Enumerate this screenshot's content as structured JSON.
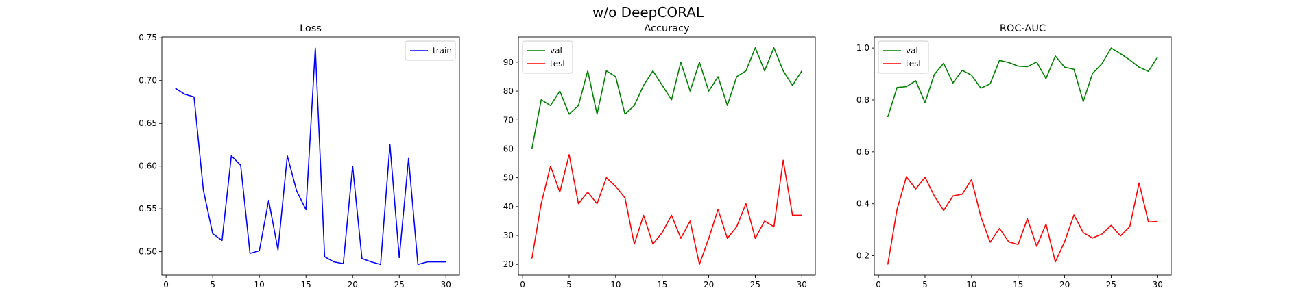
{
  "figure_title": "w/o DeepCORAL",
  "colors": {
    "train": "#0000ff",
    "val": "#008000",
    "test": "#ff0000",
    "axes": "#000000",
    "legend_edge": "#cccccc"
  },
  "chart_data": [
    {
      "type": "line",
      "title": "Loss",
      "xlabel": "",
      "ylabel": "",
      "xlim": [
        -0.45,
        31.45
      ],
      "ylim": [
        0.4725,
        0.751
      ],
      "xticks": [
        0,
        5,
        10,
        15,
        20,
        25,
        30
      ],
      "yticks": [
        0.5,
        0.55,
        0.6,
        0.65,
        0.7,
        0.75
      ],
      "ytick_labels": [
        "0.50",
        "0.55",
        "0.60",
        "0.65",
        "0.70",
        "0.75"
      ],
      "legend_position": "upper right",
      "x": [
        1,
        2,
        3,
        4,
        5,
        6,
        7,
        8,
        9,
        10,
        11,
        12,
        13,
        14,
        15,
        16,
        17,
        18,
        19,
        20,
        21,
        22,
        23,
        24,
        25,
        26,
        27,
        28,
        29,
        30
      ],
      "series": [
        {
          "name": "train",
          "color": "#0000ff",
          "values": [
            0.691,
            0.684,
            0.681,
            0.572,
            0.521,
            0.513,
            0.612,
            0.601,
            0.498,
            0.501,
            0.56,
            0.502,
            0.612,
            0.571,
            0.549,
            0.738,
            0.494,
            0.488,
            0.486,
            0.6,
            0.492,
            0.488,
            0.485,
            0.625,
            0.493,
            0.609,
            0.485,
            0.488,
            0.488,
            0.488
          ]
        }
      ]
    },
    {
      "type": "line",
      "title": "Accuracy",
      "xlabel": "",
      "ylabel": "",
      "xlim": [
        -0.45,
        31.45
      ],
      "ylim": [
        16.25,
        98.75
      ],
      "xticks": [
        0,
        5,
        10,
        15,
        20,
        25,
        30
      ],
      "yticks": [
        20,
        30,
        40,
        50,
        60,
        70,
        80,
        90
      ],
      "ytick_labels": [
        "20",
        "30",
        "40",
        "50",
        "60",
        "70",
        "80",
        "90"
      ],
      "legend_position": "upper left",
      "x": [
        1,
        2,
        3,
        4,
        5,
        6,
        7,
        8,
        9,
        10,
        11,
        12,
        13,
        14,
        15,
        16,
        17,
        18,
        19,
        20,
        21,
        22,
        23,
        24,
        25,
        26,
        27,
        28,
        29,
        30
      ],
      "series": [
        {
          "name": "val",
          "color": "#008000",
          "values": [
            60,
            77,
            75,
            80,
            72,
            75,
            87,
            72,
            87,
            85,
            72,
            75,
            82,
            87,
            82,
            77,
            90,
            80,
            90,
            80,
            85,
            75,
            85,
            87,
            95,
            87,
            95,
            87,
            82,
            87
          ]
        },
        {
          "name": "test",
          "color": "#ff0000",
          "values": [
            22,
            41,
            54,
            45,
            58,
            41,
            45,
            41,
            50,
            47,
            43,
            27,
            37,
            27,
            31,
            37,
            29,
            35,
            20,
            29,
            39,
            29,
            33,
            41,
            29,
            35,
            33,
            56,
            37,
            37
          ]
        }
      ]
    },
    {
      "type": "line",
      "title": "ROC-AUC",
      "xlabel": "",
      "ylabel": "",
      "xlim": [
        -0.45,
        31.45
      ],
      "ylim": [
        0.125,
        1.0425
      ],
      "xticks": [
        0,
        5,
        10,
        15,
        20,
        25,
        30
      ],
      "yticks": [
        0.2,
        0.4,
        0.6,
        0.8,
        1.0
      ],
      "ytick_labels": [
        "0.2",
        "0.4",
        "0.6",
        "0.8",
        "1.0"
      ],
      "legend_position": "upper left",
      "x": [
        1,
        2,
        3,
        4,
        5,
        6,
        7,
        8,
        9,
        10,
        11,
        12,
        13,
        14,
        15,
        16,
        17,
        18,
        19,
        20,
        21,
        22,
        23,
        24,
        25,
        26,
        27,
        28,
        29,
        30
      ],
      "series": [
        {
          "name": "val",
          "color": "#008000",
          "values": [
            0.734,
            0.848,
            0.851,
            0.874,
            0.79,
            0.898,
            0.941,
            0.865,
            0.914,
            0.895,
            0.845,
            0.862,
            0.952,
            0.944,
            0.93,
            0.928,
            0.946,
            0.882,
            0.969,
            0.926,
            0.918,
            0.794,
            0.902,
            0.939,
            1.0,
            0.978,
            0.954,
            0.926,
            0.91,
            0.966
          ]
        },
        {
          "name": "test",
          "color": "#ff0000",
          "values": [
            0.166,
            0.379,
            0.504,
            0.457,
            0.502,
            0.43,
            0.374,
            0.43,
            0.437,
            0.493,
            0.35,
            0.252,
            0.305,
            0.253,
            0.243,
            0.342,
            0.236,
            0.322,
            0.176,
            0.254,
            0.357,
            0.289,
            0.268,
            0.283,
            0.317,
            0.276,
            0.312,
            0.48,
            0.33,
            0.332
          ]
        }
      ]
    }
  ]
}
